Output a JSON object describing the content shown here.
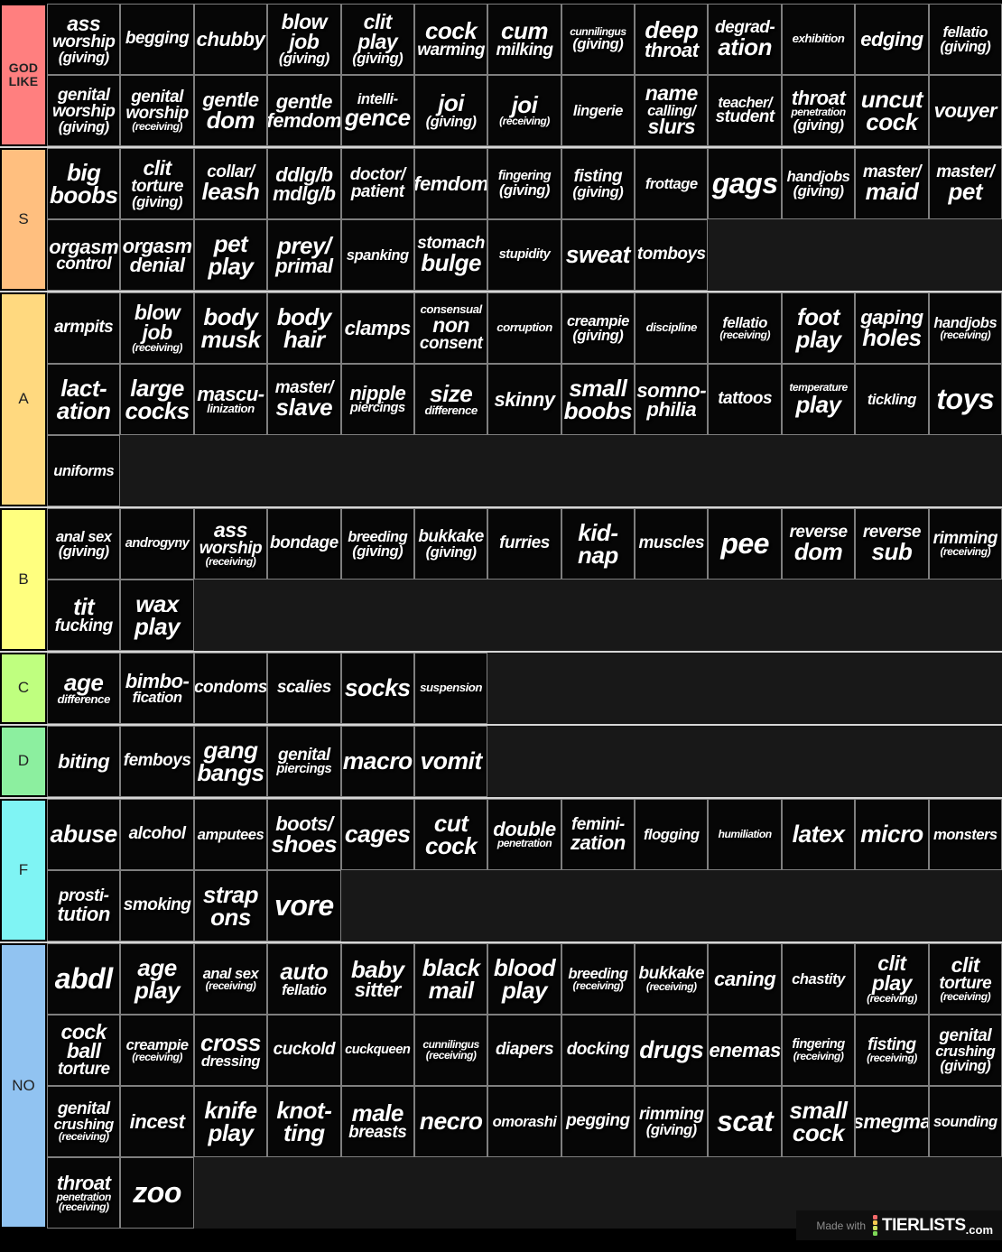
{
  "footer": {
    "made_with": "Made with",
    "brand": "TIERLISTS",
    "brand_suffix": ".com",
    "logo_colors": [
      "#f56a6a",
      "#f5c84f",
      "#cfe060",
      "#7ed957"
    ]
  },
  "tiers": [
    {
      "label": "GOD LIKE",
      "color": "#ff7f7f",
      "items": [
        "ass\nworship\n(giving)",
        "begging",
        "chubby",
        "blow\njob\n(giving)",
        "clit\nplay\n(giving)",
        "cock\nwarming",
        "cum\nmilking",
        "cunnilingus\n(giving)",
        "deep\nthroat",
        "degrad-\nation",
        "exhibition",
        "edging",
        "fellatio\n(giving)",
        "genital\nworship\n(giving)",
        "genital\nworship\n(receiving)",
        "gentle\ndom",
        "gentle\nfemdom",
        "intelli-\ngence",
        "joi\n(giving)",
        "joi\n(receiving)",
        "lingerie",
        "name\ncalling/\nslurs",
        "teacher/\nstudent",
        "throat\npenetration\n(giving)",
        "uncut\ncock",
        "vouyer"
      ]
    },
    {
      "label": "S",
      "color": "#ffbf7f",
      "items": [
        "big\nboobs",
        "clit\ntorture\n(giving)",
        "collar/\nleash",
        "ddlg/b\nmdlg/b",
        "doctor/\npatient",
        "femdom",
        "fingering\n(giving)",
        "fisting\n(giving)",
        "frottage",
        "gags",
        "handjobs\n(giving)",
        "master/\nmaid",
        "master/\npet",
        "orgasm\ncontrol",
        "orgasm\ndenial",
        "pet\nplay",
        "prey/\nprimal",
        "spanking",
        "stomach\nbulge",
        "stupidity",
        "sweat",
        "tomboys"
      ]
    },
    {
      "label": "A",
      "color": "#ffd97f",
      "items": [
        "armpits",
        "blow\njob\n(receiving)",
        "body\nmusk",
        "body\nhair",
        "clamps",
        "consensual\nnon\nconsent",
        "corruption",
        "creampie\n(giving)",
        "discipline",
        "fellatio\n(receiving)",
        "foot\nplay",
        "gaping\nholes",
        "handjobs\n(receiving)",
        "lact-\nation",
        "large\ncocks",
        "mascu-\nlinization",
        "master/\nslave",
        "nipple\npiercings",
        "size\ndifference",
        "skinny",
        "small\nboobs",
        "somno-\nphilia",
        "tattoos",
        "temperature\nplay",
        "tickling",
        "toys",
        "uniforms"
      ]
    },
    {
      "label": "B",
      "color": "#ffff7f",
      "items": [
        "anal sex\n(giving)",
        "androgyny",
        "ass\nworship\n(receiving)",
        "bondage",
        "breeding\n(giving)",
        "bukkake\n(giving)",
        "furries",
        "kid-\nnap",
        "muscles",
        "pee",
        "reverse\ndom",
        "reverse\nsub",
        "rimming\n(receiving)",
        "tit\nfucking",
        "wax\nplay"
      ]
    },
    {
      "label": "C",
      "color": "#bfff7f",
      "items": [
        "age\ndifference",
        "bimbo-\nfication",
        "condoms",
        "scalies",
        "socks",
        "suspension"
      ]
    },
    {
      "label": "D",
      "color": "#8cef9f",
      "items": [
        "biting",
        "femboys",
        "gang\nbangs",
        "genital\npiercings",
        "macro",
        "vomit"
      ]
    },
    {
      "label": "F",
      "color": "#7ff4f4",
      "items": [
        "abuse",
        "alcohol",
        "amputees",
        "boots/\nshoes",
        "cages",
        "cut\ncock",
        "double\npenetration",
        "femini-\nzation",
        "flogging",
        "humiliation",
        "latex",
        "micro",
        "monsters",
        "prosti-\ntution",
        "smoking",
        "strap\nons",
        "vore"
      ]
    },
    {
      "label": "NO",
      "color": "#91c3f1",
      "items": [
        "abdl",
        "age\nplay",
        "anal sex\n(receiving)",
        "auto\nfellatio",
        "baby\nsitter",
        "black\nmail",
        "blood\nplay",
        "breeding\n(receiving)",
        "bukkake\n(receiving)",
        "caning",
        "chastity",
        "clit\nplay\n(receiving)",
        "clit\ntorture\n(receiving)",
        "cock\nball\ntorture",
        "creampie\n(receiving)",
        "cross\ndressing",
        "cuckold",
        "cuckqueen",
        "cunnilingus\n(receiving)",
        "diapers",
        "docking",
        "drugs",
        "enemas",
        "fingering\n(receiving)",
        "fisting\n(receiving)",
        "genital\ncrushing\n(giving)",
        "genital\ncrushing\n(receiving)",
        "incest",
        "knife\nplay",
        "knot-\nting",
        "male\nbreasts",
        "necro",
        "omorashi",
        "pegging",
        "rimming\n(giving)",
        "scat",
        "small\ncock",
        "smegma",
        "sounding",
        "throat\npenetration\n(receiving)",
        "zoo"
      ]
    }
  ]
}
